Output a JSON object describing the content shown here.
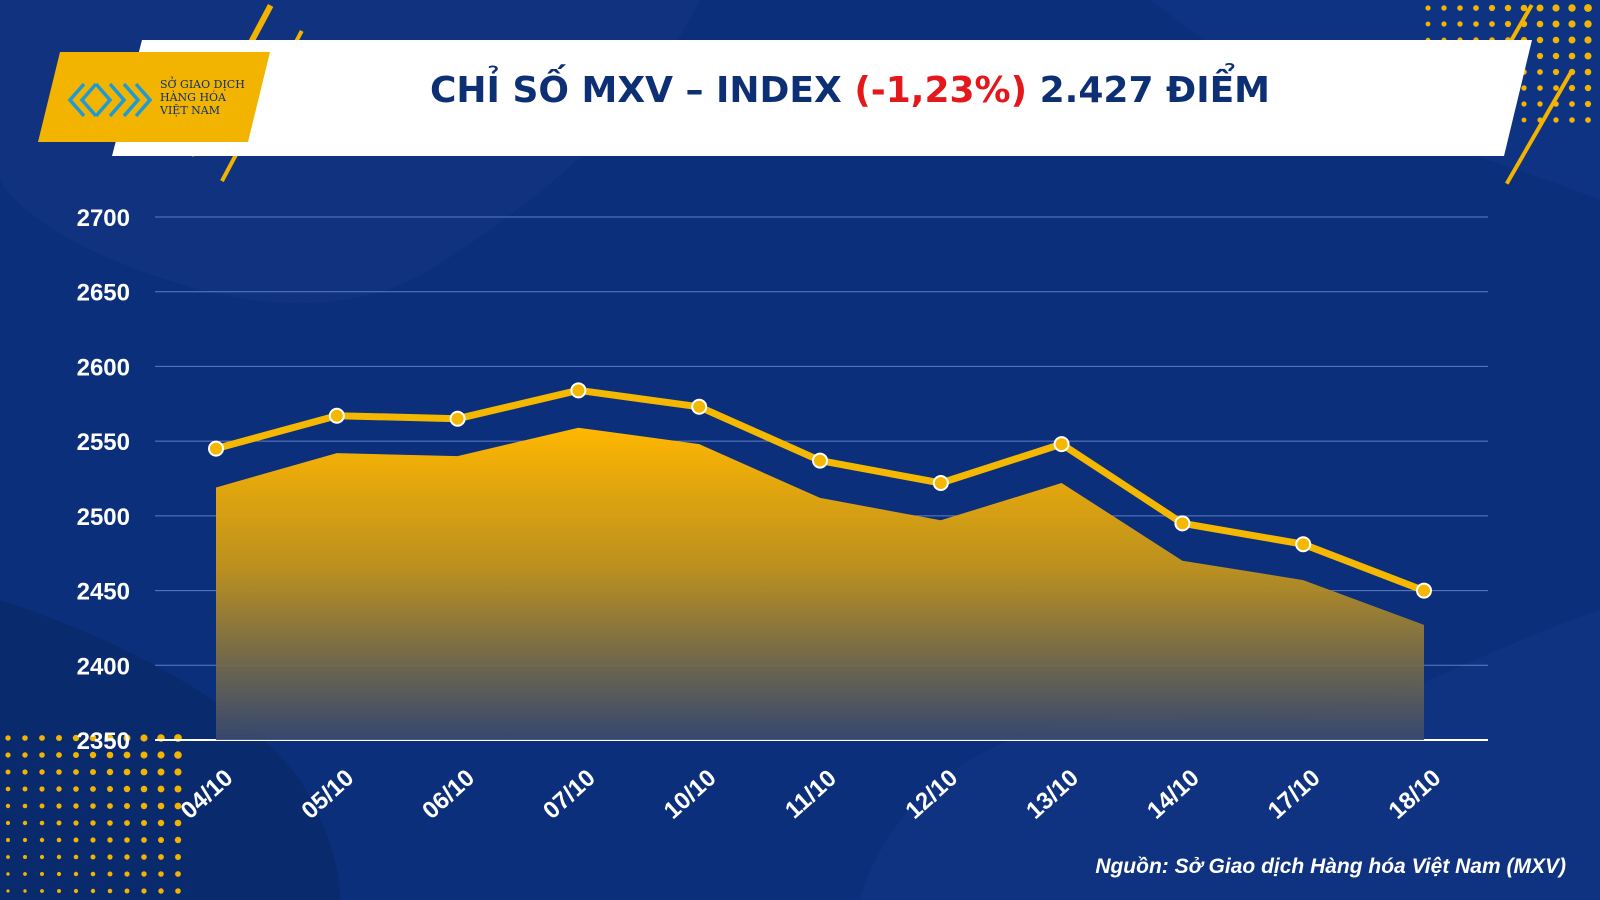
{
  "header": {
    "title_main": "CHỈ SỐ MXV – INDEX",
    "title_change": "(-1,23%)",
    "title_value": "2.427 ĐIỂM",
    "logo_line1": "SỞ GIAO DỊCH",
    "logo_line2": "HÀNG HÓA",
    "logo_line3": "VIỆT NAM"
  },
  "source": "Nguồn: Sở Giao dịch Hàng hóa Việt Nam (MXV)",
  "colors": {
    "background": "#0b2f7a",
    "accent_yellow": "#f5b800",
    "negative_red": "#e4171b",
    "grid": "#5d7fc3"
  },
  "chart_data": {
    "type": "line",
    "categories": [
      "04/10",
      "05/10",
      "06/10",
      "07/10",
      "10/10",
      "11/10",
      "12/10",
      "13/10",
      "14/10",
      "17/10",
      "18/10"
    ],
    "series": [
      {
        "values": [
          2545,
          2567,
          2565,
          2584,
          2573,
          2537,
          2522,
          2548,
          2495,
          2481,
          2450
        ]
      }
    ],
    "area_values": [
      2519,
      2542,
      2540,
      2559,
      2548,
      2512,
      2497,
      2522,
      2470,
      2457,
      2427
    ],
    "ylim": [
      2350,
      2700
    ],
    "yticks": [
      2350,
      2400,
      2450,
      2500,
      2550,
      2600,
      2650,
      2700
    ],
    "grid": true,
    "legend": "none"
  }
}
